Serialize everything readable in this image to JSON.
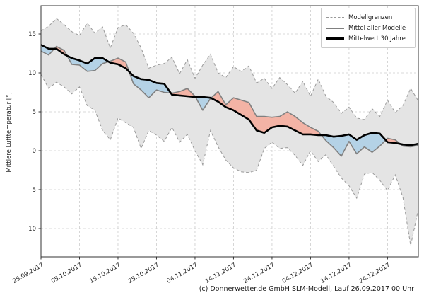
{
  "figure": {
    "ylabel": "Mittlere Lufttemperatur [°]",
    "caption": "(c) Donnerwetter.de GmbH SLM-Modell, Lauf 26.09.2017 00 Uhr"
  },
  "legend": {
    "items": [
      {
        "label": "Modellgrenzen",
        "style": "dashed-gray"
      },
      {
        "label": "Mittel aller Modelle",
        "style": "solid-gray"
      },
      {
        "label": "Mittelwert 30 Jahre",
        "style": "thick-black"
      }
    ]
  },
  "chart_data": {
    "type": "line",
    "title": "",
    "xlabel": "",
    "ylabel": "Mittlere Lufttemperatur [°]",
    "legend_position": "upper right",
    "grid": "dashed",
    "ylim": [
      -13.6,
      18.6
    ],
    "y_ticks": [
      15,
      10,
      5,
      0,
      -5,
      -10
    ],
    "y_tick_labels": [
      "15",
      "10",
      "5",
      "0",
      "−5",
      "−10"
    ],
    "x_tick_labels": [
      "25.09.2017",
      "05.10.2017",
      "15.10.2017",
      "25.10.2017",
      "04.11.2017",
      "14.11.2017",
      "24.11.2017",
      "04.12.2017",
      "14.12.2017",
      "24.12.2017"
    ],
    "x_dates": [
      "25.09",
      "27.09",
      "29.09",
      "01.10",
      "03.10",
      "05.10",
      "07.10",
      "09.10",
      "11.10",
      "13.10",
      "15.10",
      "17.10",
      "19.10",
      "21.10",
      "23.10",
      "25.10",
      "27.10",
      "29.10",
      "31.10",
      "02.11",
      "04.11",
      "06.11",
      "08.11",
      "10.11",
      "12.11",
      "14.11",
      "16.11",
      "18.11",
      "20.11",
      "22.11",
      "24.11",
      "26.11",
      "28.11",
      "30.11",
      "02.12",
      "04.12",
      "06.12",
      "08.12",
      "10.12",
      "12.12",
      "14.12",
      "16.12",
      "18.12",
      "20.12",
      "22.12",
      "24.12",
      "26.12",
      "28.12",
      "30.12",
      "01.01"
    ],
    "series": [
      {
        "name": "Modellgrenzen (obere Grenze)",
        "role": "band_upper",
        "values": [
          15.4,
          16.0,
          17.0,
          16.2,
          15.3,
          14.8,
          16.4,
          15.1,
          15.9,
          13.2,
          15.8,
          16.2,
          15.1,
          13.2,
          10.6,
          11.0,
          11.2,
          12.0,
          9.9,
          11.7,
          9.3,
          11.0,
          12.4,
          10.0,
          9.4,
          10.8,
          10.2,
          10.9,
          8.7,
          9.3,
          8.0,
          9.4,
          8.5,
          7.4,
          8.9,
          7.0,
          9.2,
          7.0,
          6.2,
          4.8,
          5.6,
          4.2,
          4.0,
          5.4,
          4.4,
          6.5,
          4.9,
          5.8,
          8.0,
          6.4
        ]
      },
      {
        "name": "Modellgrenzen (untere Grenze)",
        "role": "band_lower",
        "values": [
          9.8,
          8.0,
          8.8,
          8.2,
          7.3,
          8.2,
          5.8,
          5.2,
          2.6,
          1.4,
          4.2,
          3.6,
          3.0,
          0.3,
          2.6,
          2.0,
          1.2,
          3.0,
          1.1,
          2.1,
          0.0,
          -1.8,
          2.6,
          0.5,
          -1.2,
          -2.2,
          -2.7,
          -2.8,
          -2.5,
          0.3,
          1.1,
          0.3,
          0.4,
          -0.6,
          -1.9,
          0.0,
          -1.4,
          -0.5,
          -2.0,
          -3.5,
          -4.5,
          -6.1,
          -3.0,
          -2.8,
          -3.8,
          -5.1,
          -3.1,
          -6.0,
          -12.2,
          -7.5
        ]
      },
      {
        "name": "Mittel aller Modelle",
        "role": "model_mean",
        "values": [
          12.8,
          12.3,
          13.4,
          12.9,
          11.1,
          11.0,
          10.2,
          10.3,
          11.2,
          11.5,
          11.9,
          11.4,
          8.6,
          7.8,
          6.8,
          7.8,
          7.5,
          7.4,
          7.6,
          8.0,
          7.0,
          5.2,
          6.7,
          7.6,
          5.9,
          6.8,
          6.5,
          6.2,
          4.4,
          4.4,
          4.3,
          4.4,
          5.0,
          4.4,
          3.6,
          3.0,
          2.5,
          1.3,
          0.4,
          -0.7,
          1.2,
          -0.4,
          0.5,
          -0.2,
          0.6,
          1.6,
          1.4,
          0.6,
          0.5,
          0.7
        ]
      },
      {
        "name": "Mittelwert 30 Jahre",
        "role": "climate_mean",
        "values": [
          13.6,
          13.1,
          13.1,
          12.4,
          11.9,
          11.6,
          11.2,
          11.9,
          11.9,
          11.3,
          11.1,
          10.6,
          9.6,
          9.2,
          9.1,
          8.7,
          8.6,
          7.2,
          7.1,
          7.0,
          6.9,
          6.9,
          6.8,
          6.3,
          5.6,
          5.2,
          4.6,
          4.0,
          2.6,
          2.3,
          3.0,
          3.2,
          3.1,
          2.6,
          2.1,
          2.1,
          2.0,
          2.0,
          1.8,
          1.9,
          2.1,
          1.4,
          2.0,
          2.3,
          2.2,
          1.1,
          1.0,
          0.8,
          0.7,
          0.9
        ]
      }
    ],
    "colors": {
      "band_fill": "#e4e4e4",
      "band_edge": "#999999",
      "model_mean_line": "#808080",
      "climate_mean_line": "#000000",
      "warm_anomaly_fill": "#f3b3a5",
      "cold_anomaly_fill": "#b4d2e6",
      "gridline": "#cccccc",
      "axis": "#333333",
      "tick_text": "#262626"
    }
  }
}
